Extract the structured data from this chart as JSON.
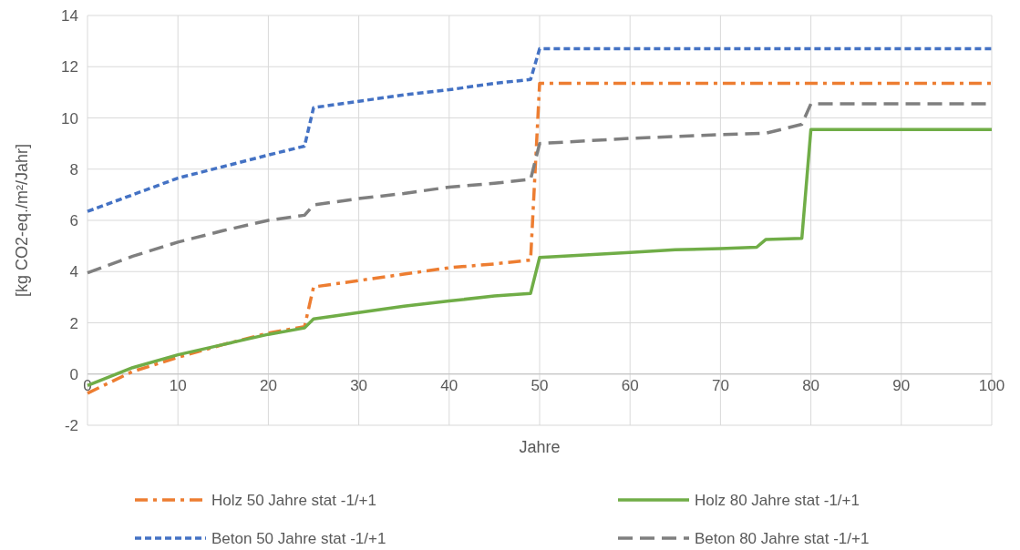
{
  "chart_data": {
    "type": "line",
    "xlabel": "Jahre",
    "ylabel": "[kg CO2-eq./m²/Jahr]",
    "xlim": [
      0,
      100
    ],
    "xticks": [
      0,
      10,
      20,
      30,
      40,
      50,
      60,
      70,
      80,
      90,
      100
    ],
    "ylim": [
      -2,
      14
    ],
    "yticks": [
      -2,
      0,
      2,
      4,
      6,
      8,
      10,
      12,
      14
    ],
    "grid": true,
    "legend": "bottom",
    "series": [
      {
        "name": "Holz 50 Jahre stat -1/+1",
        "color": "#ed7d31",
        "line_style": "dashdot",
        "x": [
          0,
          5,
          10,
          15,
          20,
          24,
          25,
          30,
          35,
          40,
          45,
          49,
          50,
          100
        ],
        "values": [
          -0.75,
          0.1,
          0.65,
          1.15,
          1.6,
          1.85,
          3.4,
          3.65,
          3.9,
          4.15,
          4.3,
          4.45,
          11.35,
          11.35
        ]
      },
      {
        "name": "Holz 80 Jahre stat -1/+1",
        "color": "#70ad47",
        "line_style": "solid",
        "x": [
          0,
          5,
          10,
          15,
          20,
          24,
          25,
          30,
          35,
          40,
          45,
          49,
          50,
          55,
          60,
          65,
          70,
          74,
          75,
          79,
          80,
          100
        ],
        "values": [
          -0.45,
          0.25,
          0.75,
          1.15,
          1.55,
          1.8,
          2.15,
          2.4,
          2.65,
          2.85,
          3.05,
          3.15,
          4.55,
          4.65,
          4.75,
          4.85,
          4.9,
          4.95,
          5.25,
          5.3,
          9.55,
          9.55
        ]
      },
      {
        "name": "Beton 50 Jahre stat -1/+1",
        "color": "#4472c4",
        "line_style": "dashed",
        "x": [
          0,
          5,
          10,
          15,
          20,
          24,
          25,
          30,
          35,
          40,
          45,
          49,
          50,
          100
        ],
        "values": [
          6.35,
          7.0,
          7.65,
          8.1,
          8.55,
          8.9,
          10.4,
          10.65,
          10.9,
          11.1,
          11.35,
          11.5,
          12.7,
          12.7
        ]
      },
      {
        "name": "Beton 80 Jahre stat -1/+1",
        "color": "#7f7f7f",
        "line_style": "longdash",
        "x": [
          0,
          5,
          10,
          15,
          20,
          24,
          25,
          30,
          35,
          40,
          45,
          49,
          50,
          60,
          70,
          75,
          79,
          80,
          100
        ],
        "values": [
          3.95,
          4.6,
          5.15,
          5.6,
          6.0,
          6.2,
          6.6,
          6.85,
          7.05,
          7.3,
          7.45,
          7.6,
          9.0,
          9.2,
          9.35,
          9.4,
          9.75,
          10.55,
          10.55
        ]
      }
    ]
  }
}
